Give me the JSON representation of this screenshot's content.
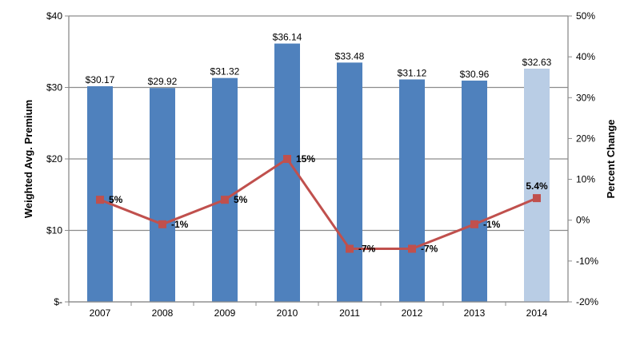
{
  "chart_data": {
    "type": "bar+line",
    "categories": [
      "2007",
      "2008",
      "2009",
      "2010",
      "2011",
      "2012",
      "2013",
      "2014"
    ],
    "series": [
      {
        "type": "bar",
        "axis": "left",
        "values": [
          30.17,
          29.92,
          31.32,
          36.14,
          33.48,
          31.12,
          30.96,
          32.63
        ],
        "labels": [
          "$30.17",
          "$29.92",
          "$31.32",
          "$36.14",
          "$33.48",
          "$31.12",
          "$30.96",
          "$32.63"
        ]
      },
      {
        "type": "line",
        "axis": "right",
        "values": [
          5,
          -1,
          5,
          15,
          -7,
          -7,
          -1,
          5.4
        ],
        "labels": [
          "5%",
          "-1%",
          "5%",
          "15%",
          "-7%",
          "-7%",
          "-1%",
          "5.4%"
        ]
      }
    ],
    "ylabel": "Weighted Avg. Premium",
    "y2label": "Percent Change",
    "ylim": [
      0,
      40
    ],
    "y2lim": [
      -20,
      50
    ],
    "yticks": [
      "$-",
      "$10",
      "$20",
      "$30",
      "$40"
    ],
    "y2ticks": [
      "-20%",
      "-10%",
      "0%",
      "10%",
      "20%",
      "30%",
      "40%",
      "50%"
    ],
    "grid": true,
    "colors": {
      "bar": "#4f81bd",
      "bar_highlight": "#b9cde5",
      "line": "#c0504d",
      "grid": "#8c8c8c"
    }
  }
}
